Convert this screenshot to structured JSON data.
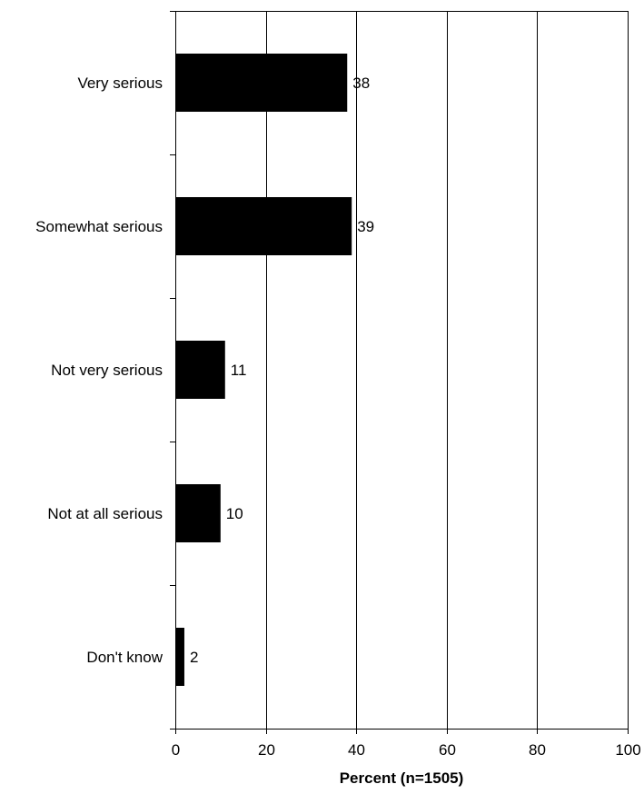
{
  "chart_data": {
    "type": "bar",
    "orientation": "horizontal",
    "categories": [
      "Very serious",
      "Somewhat serious",
      "Not very serious",
      "Not at all serious",
      "Don't know"
    ],
    "values": [
      38,
      39,
      11,
      10,
      2
    ],
    "data_labels": [
      "38",
      "39",
      "11",
      "10",
      "2"
    ],
    "title": "",
    "xlabel": "Percent (n=1505)",
    "ylabel": "",
    "xlim": [
      0,
      100
    ],
    "xticks": [
      0,
      20,
      40,
      60,
      80,
      100
    ],
    "xtick_labels": [
      "0",
      "20",
      "40",
      "60",
      "80",
      "100"
    ],
    "grid": "vertical",
    "legend": "none",
    "colors": {
      "bar": "#000000",
      "grid": "#000000",
      "axis": "#000000",
      "text": "#000000",
      "background": "#ffffff"
    }
  }
}
